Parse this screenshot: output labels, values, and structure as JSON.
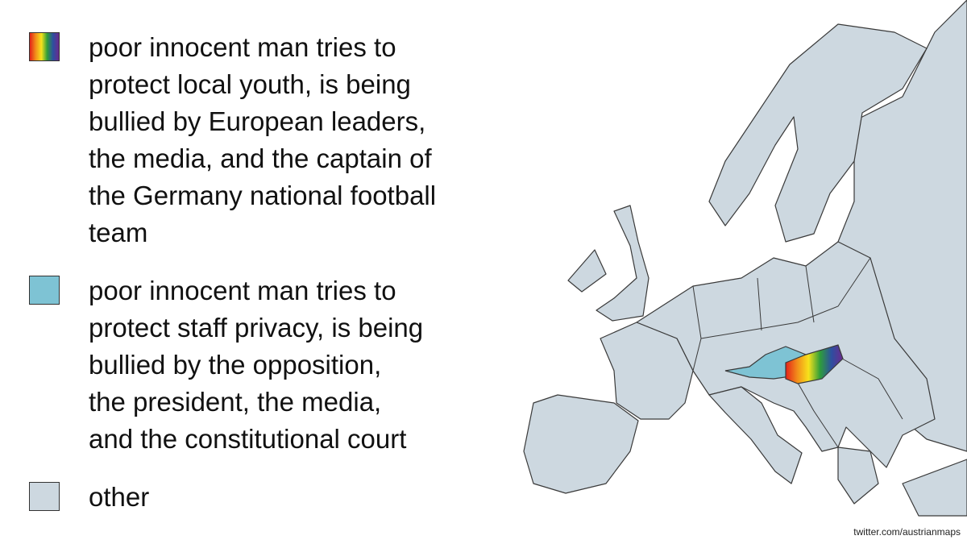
{
  "legend": {
    "items": [
      {
        "lines": [
          "poor innocent man tries to",
          "protect local youth, is being",
          "bullied by European leaders,",
          "the media, and the captain of",
          "the Germany national football",
          "team"
        ]
      },
      {
        "lines": [
          "poor innocent man tries to",
          "protect staff privacy, is being",
          "bullied by the opposition,",
          "the president, the media,",
          "and the constitutional court"
        ]
      },
      {
        "lines": [
          "other"
        ]
      }
    ]
  },
  "credit": "twitter.com/austrianmaps"
}
